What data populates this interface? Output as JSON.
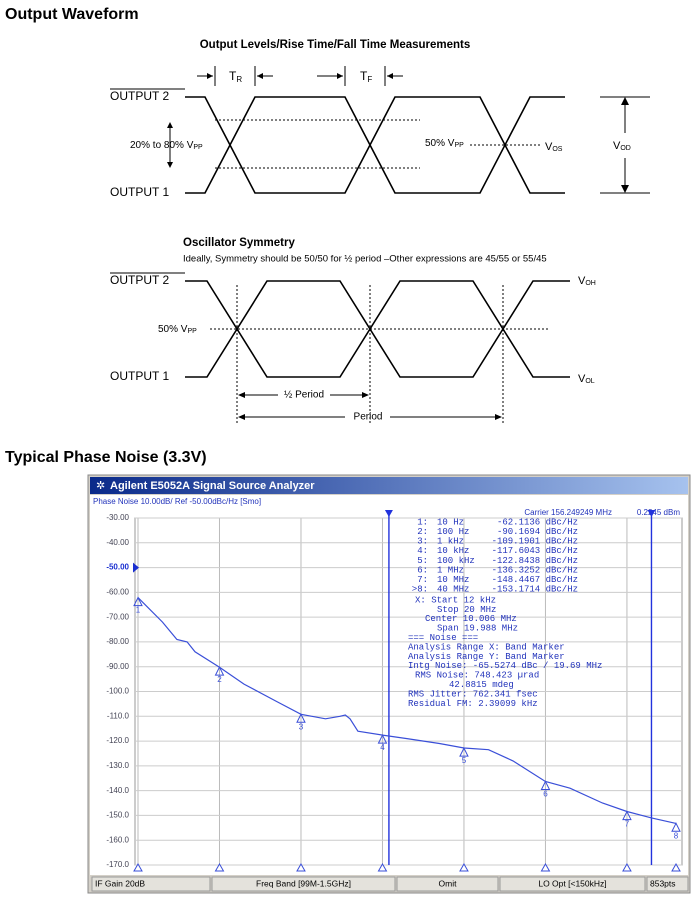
{
  "heading1": "Output Waveform",
  "diagram1": {
    "title": "Output Levels/Rise Time/Fall Time Measurements",
    "tr": "T",
    "tr_sub": "R",
    "tf": "T",
    "tf_sub": "F",
    "output2": "OUTPUT 2",
    "output1": "OUTPUT 1",
    "pct": "20% to 80% V",
    "pct_sub": "PP",
    "mid": "50% V",
    "mid_sub": "PP",
    "vos": "V",
    "vos_sub": "OS",
    "vod": "V",
    "vod_sub": "OD"
  },
  "diagram2": {
    "title": "Oscillator Symmetry",
    "note": "Ideally, Symmetry should be 50/50 for ½ period –Other expressions are 45/55 or 55/45",
    "output2": "OUTPUT 2",
    "output1": "OUTPUT 1",
    "mid": "50% V",
    "mid_sub": "PP",
    "voh": "V",
    "voh_sub": "OH",
    "vol": "V",
    "vol_sub": "OL",
    "half": "½ Period",
    "period": "Period"
  },
  "heading2": "Typical Phase Noise (3.3V)",
  "analyzer": {
    "title": "Agilent E5052A Signal Source Analyzer",
    "header": "Phase Noise 10.00dB/ Ref -50.00dBc/Hz [Smo]",
    "carrier": "Carrier 156.249249 MHz",
    "power": "0.2245 dBm",
    "table": [
      [
        "1:",
        "10 Hz",
        "-62.1136 dBc/Hz"
      ],
      [
        "2:",
        "100 Hz",
        "-90.1694 dBc/Hz"
      ],
      [
        "3:",
        "1 kHz",
        "-109.1901 dBc/Hz"
      ],
      [
        "4:",
        "10 kHz",
        "-117.6043 dBc/Hz"
      ],
      [
        "5:",
        "100 kHz",
        "-122.8438 dBc/Hz"
      ],
      [
        "6:",
        "1 MHz",
        "-136.3252 dBc/Hz"
      ],
      [
        "7:",
        "10 MHz",
        "-148.4467 dBc/Hz"
      ],
      [
        ">8:",
        "40 MHz",
        "-153.1714 dBc/Hz"
      ]
    ],
    "info": [
      "X: Start 12 kHz",
      "Stop 20 MHz",
      "Center 10.006 MHz",
      "Span 19.988 MHz",
      "=== Noise ===",
      "Analysis Range X: Band Marker",
      "Analysis Range Y: Band Marker",
      "Intg Noise: -65.5274 dBc / 19.69 MHz",
      "RMS Noise: 748.423 µrad",
      "42.8815 mdeg",
      "RMS Jitter: 762.341 fsec",
      "Residual FM: 2.39099 kHz"
    ],
    "status": [
      "IF Gain 20dB",
      "Freq Band [99M-1.5GHz]",
      "Omit",
      "LO Opt [<150kHz]",
      "853pts"
    ]
  },
  "chart_data": {
    "type": "line",
    "xscale": "log",
    "color": "#3a4fd8",
    "x": [
      10,
      20,
      30,
      40,
      50,
      100,
      200,
      500,
      1000,
      2000,
      3000,
      3500,
      4000,
      5000,
      10000,
      20000,
      50000,
      100000,
      200000,
      400000,
      1000000,
      2000000,
      5000000,
      10000000,
      20000000,
      40000000
    ],
    "values": [
      -62.1,
      -72,
      -79,
      -80,
      -84,
      -90.2,
      -97,
      -104,
      -109.2,
      -111,
      -110,
      -109.5,
      -111,
      -116,
      -117.6,
      -119,
      -121,
      -122.8,
      -123.5,
      -128,
      -136.3,
      -139,
      -145,
      -148.4,
      -151,
      -153.2
    ],
    "markers": {
      "labels": [
        "1",
        "2",
        "3",
        "4",
        "5",
        "6",
        "7",
        "8"
      ],
      "x": [
        10,
        100,
        1000,
        10000,
        100000,
        1000000,
        10000000,
        40000000
      ],
      "values": [
        -62.1136,
        -90.1694,
        -109.1901,
        -117.6043,
        -122.8438,
        -136.3252,
        -148.4467,
        -153.1714
      ]
    },
    "vlines": [
      12000,
      20000000
    ],
    "ref_level": -50,
    "xlim": [
      10,
      40000000
    ],
    "xticks": [
      10,
      100,
      1000,
      10000,
      100000,
      1000000,
      10000000
    ],
    "ylim": [
      -170,
      -30
    ],
    "yticks": [
      {
        "value": -30,
        "label": "-30.00"
      },
      {
        "value": -40,
        "label": "-40.00"
      },
      {
        "value": -50,
        "label": "-50.00"
      },
      {
        "value": -60,
        "label": "-60.00"
      },
      {
        "value": -70,
        "label": "-70.00"
      },
      {
        "value": -80,
        "label": "-80.00"
      },
      {
        "value": -90,
        "label": "-90.00"
      },
      {
        "value": -100,
        "label": "-100.0"
      },
      {
        "value": -110,
        "label": "-110.0"
      },
      {
        "value": -120,
        "label": "-120.0"
      },
      {
        "value": -130,
        "label": "-130.0"
      },
      {
        "value": -140,
        "label": "-140.0"
      },
      {
        "value": -150,
        "label": "-150.0"
      },
      {
        "value": -160,
        "label": "-160.0"
      },
      {
        "value": -170,
        "label": "-170.0"
      }
    ],
    "grid": true
  }
}
